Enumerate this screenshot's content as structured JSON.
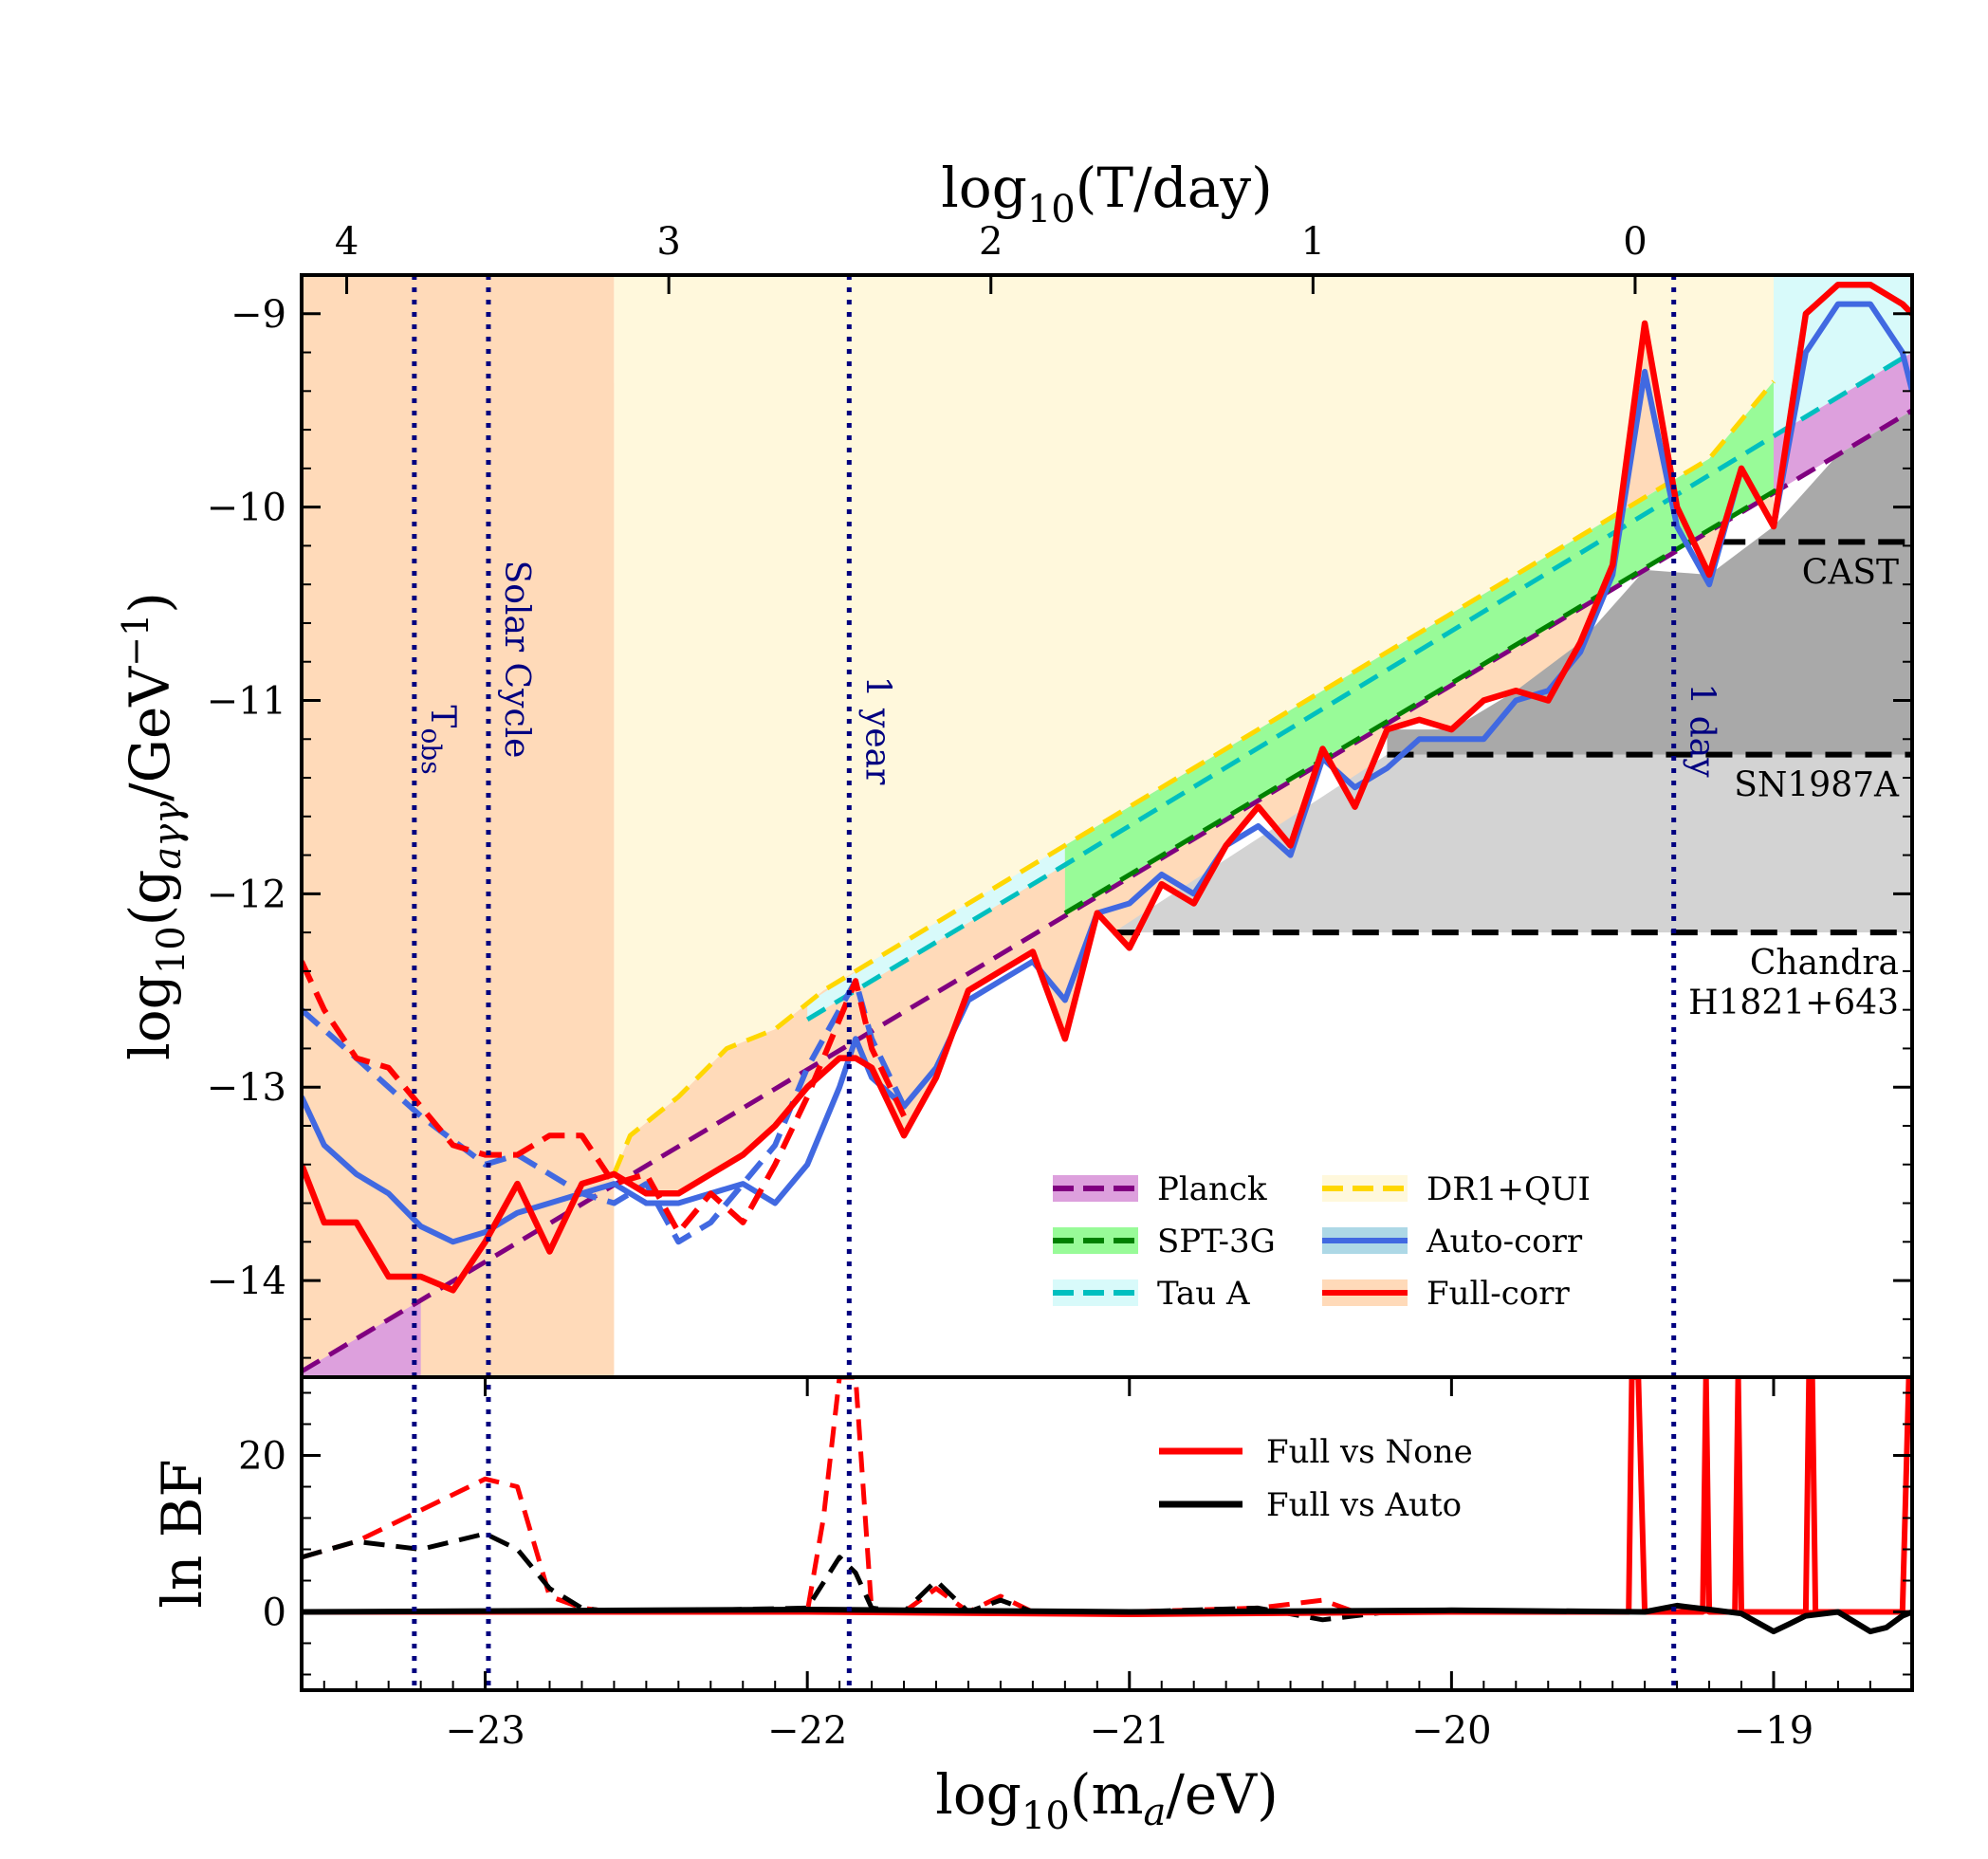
{
  "chart_data": {
    "type": "line",
    "top_axis": {
      "label_prefix": "log",
      "label_sub": "10",
      "label_main": "(T/day)",
      "ticks": [
        {
          "label": "4",
          "log_m": -23.43
        },
        {
          "label": "3",
          "log_m": -22.43
        },
        {
          "label": "2",
          "log_m": -21.43
        },
        {
          "label": "1",
          "log_m": -20.43
        },
        {
          "label": "0",
          "log_m": -19.43
        }
      ]
    },
    "upper_panel": {
      "ylabel_prefix": "log",
      "ylabel_sub": "10",
      "ylabel_main": "(g",
      "ylabel_sub2": "aγγ",
      "ylabel_rest": "/GeV",
      "ylabel_sup": "−1",
      "ylabel_close": ")",
      "xlim": [
        -23.57,
        -18.57
      ],
      "ylim": [
        -14.5,
        -8.8
      ],
      "yticks": [
        {
          "value": -9,
          "label": "−9"
        },
        {
          "value": -10,
          "label": "−10"
        },
        {
          "value": -11,
          "label": "−11"
        },
        {
          "value": -12,
          "label": "−12"
        },
        {
          "value": -13,
          "label": "−13"
        },
        {
          "value": -14,
          "label": "−14"
        }
      ],
      "vlines": [
        {
          "x": -23.22,
          "label": "T",
          "label_sub": "obs"
        },
        {
          "x": -22.99,
          "label": "Solar Cycle",
          "label_sub": ""
        },
        {
          "x": -21.87,
          "label": "1 year",
          "label_sub": ""
        },
        {
          "x": -19.31,
          "label": "1 day",
          "label_sub": ""
        }
      ],
      "bounds": [
        {
          "name": "CAST",
          "y": -10.18,
          "x_start": -19.17
        },
        {
          "name": "SN1987A",
          "y": -11.28,
          "x_start": -20.2
        },
        {
          "name": "Chandra H1821+643",
          "label_lines": [
            "Chandra",
            "H1821+643"
          ],
          "y": -12.2,
          "x_start": -21.05
        }
      ],
      "series": [
        {
          "name": "Planck",
          "color": "#800080",
          "fill": "#dda0dd",
          "x": [
            -23.57,
            -18.57
          ],
          "y": [
            -14.47,
            -9.5
          ]
        },
        {
          "name": "SPT-3G",
          "color": "#008000",
          "fill": "#98fb98",
          "x": [
            -21.2,
            -18.98
          ],
          "y": [
            -12.1,
            -9.9
          ]
        },
        {
          "name": "Tau A",
          "color": "#00bfbf",
          "fill": "#d8fafa",
          "x": [
            -22.0,
            -21.2,
            -18.57
          ],
          "y": [
            -12.65,
            -11.85,
            -9.2
          ]
        },
        {
          "name": "DR1+QUI",
          "color": "#ffd700",
          "fill": "#fff8dc",
          "x": [
            -22.6,
            -22.55,
            -22.4,
            -22.25,
            -22.1,
            -21.95,
            -21.8,
            -21.6,
            -21.4,
            -21.2,
            -21.0,
            -20.8,
            -20.6,
            -20.4,
            -20.2,
            -20.0,
            -19.8,
            -19.6,
            -19.4,
            -19.2,
            -19.0
          ],
          "y": [
            -13.45,
            -13.25,
            -13.05,
            -12.8,
            -12.7,
            -12.5,
            -12.35,
            -12.15,
            -11.95,
            -11.75,
            -11.55,
            -11.35,
            -11.15,
            -10.95,
            -10.75,
            -10.55,
            -10.35,
            -10.15,
            -9.95,
            -9.75,
            -9.35
          ]
        },
        {
          "name": "Auto-corr",
          "color": "#4169e1",
          "fill": "#add8e6",
          "x": [
            -23.57,
            -23.5,
            -23.4,
            -23.3,
            -23.2,
            -23.1,
            -23.0,
            -22.9,
            -22.8,
            -22.7,
            -22.6,
            -22.5,
            -22.4,
            -22.3,
            -22.2,
            -22.1,
            -22.0,
            -21.9,
            -21.85,
            -21.8,
            -21.7,
            -21.6,
            -21.5,
            -21.4,
            -21.3,
            -21.2,
            -21.1,
            -21.0,
            -20.9,
            -20.8,
            -20.7,
            -20.6,
            -20.5,
            -20.4,
            -20.3,
            -20.2,
            -20.1,
            -20.0,
            -19.9,
            -19.8,
            -19.7,
            -19.6,
            -19.5,
            -19.4,
            -19.3,
            -19.2,
            -19.1,
            -19.0,
            -18.9,
            -18.8,
            -18.7,
            -18.6,
            -18.57
          ],
          "y": [
            -13.05,
            -13.3,
            -13.45,
            -13.55,
            -13.72,
            -13.8,
            -13.75,
            -13.65,
            -13.6,
            -13.55,
            -13.5,
            -13.6,
            -13.6,
            -13.55,
            -13.5,
            -13.6,
            -13.4,
            -13.0,
            -12.75,
            -12.95,
            -13.1,
            -12.9,
            -12.55,
            -12.45,
            -12.35,
            -12.55,
            -12.1,
            -12.05,
            -11.9,
            -12.0,
            -11.75,
            -11.65,
            -11.8,
            -11.3,
            -11.45,
            -11.35,
            -11.2,
            -11.2,
            -11.2,
            -11.0,
            -10.95,
            -10.75,
            -10.35,
            -9.3,
            -10.1,
            -10.4,
            -9.8,
            -10.1,
            -9.2,
            -8.95,
            -8.95,
            -9.2,
            -9.4
          ]
        },
        {
          "name": "Full-corr",
          "color": "#ff0000",
          "fill": "#ffdab9",
          "x": [
            -23.57,
            -23.5,
            -23.4,
            -23.3,
            -23.2,
            -23.1,
            -23.0,
            -22.9,
            -22.8,
            -22.7,
            -22.6,
            -22.5,
            -22.4,
            -22.3,
            -22.2,
            -22.1,
            -22.0,
            -21.9,
            -21.85,
            -21.8,
            -21.7,
            -21.6,
            -21.5,
            -21.4,
            -21.3,
            -21.2,
            -21.1,
            -21.0,
            -20.9,
            -20.8,
            -20.7,
            -20.6,
            -20.5,
            -20.4,
            -20.3,
            -20.2,
            -20.1,
            -20.0,
            -19.9,
            -19.8,
            -19.7,
            -19.6,
            -19.5,
            -19.4,
            -19.3,
            -19.2,
            -19.1,
            -19.0,
            -18.9,
            -18.8,
            -18.7,
            -18.6,
            -18.57
          ],
          "y": [
            -13.4,
            -13.7,
            -13.7,
            -13.98,
            -13.98,
            -14.05,
            -13.8,
            -13.5,
            -13.85,
            -13.5,
            -13.45,
            -13.55,
            -13.55,
            -13.45,
            -13.35,
            -13.2,
            -13.0,
            -12.85,
            -12.85,
            -12.9,
            -13.25,
            -12.95,
            -12.5,
            -12.4,
            -12.3,
            -12.75,
            -12.1,
            -12.28,
            -11.95,
            -12.05,
            -11.75,
            -11.55,
            -11.75,
            -11.25,
            -11.55,
            -11.15,
            -11.1,
            -11.15,
            -11.0,
            -10.95,
            -11.0,
            -10.7,
            -10.3,
            -9.05,
            -10.0,
            -10.35,
            -9.8,
            -10.1,
            -9.0,
            -8.85,
            -8.85,
            -8.95,
            -9.0
          ]
        }
      ],
      "dashed_auto": {
        "x": [
          -23.57,
          -23.4,
          -23.2,
          -23.0,
          -22.9,
          -22.8,
          -22.7,
          -22.6,
          -22.5,
          -22.4,
          -22.3,
          -22.2,
          -22.1,
          -22.0,
          -21.9,
          -21.85,
          -21.8,
          -21.7
        ],
        "y": [
          -12.6,
          -12.85,
          -13.15,
          -13.4,
          -13.35,
          -13.45,
          -13.55,
          -13.6,
          -13.5,
          -13.8,
          -13.7,
          -13.5,
          -13.3,
          -12.9,
          -12.6,
          -12.45,
          -12.75,
          -13.1
        ]
      },
      "dashed_full": {
        "x": [
          -23.57,
          -23.5,
          -23.4,
          -23.3,
          -23.2,
          -23.1,
          -23.0,
          -22.9,
          -22.8,
          -22.7,
          -22.6,
          -22.5,
          -22.4,
          -22.3,
          -22.2,
          -22.1,
          -22.0,
          -21.9,
          -21.85,
          -21.8,
          -21.7
        ],
        "y": [
          -12.35,
          -12.6,
          -12.85,
          -12.9,
          -13.1,
          -13.3,
          -13.35,
          -13.35,
          -13.25,
          -13.25,
          -13.5,
          -13.45,
          -13.75,
          -13.55,
          -13.7,
          -13.4,
          -13.05,
          -12.65,
          -12.45,
          -12.8,
          -13.15
        ]
      }
    },
    "lower_panel": {
      "ylabel": "ln BF",
      "ylim": [
        -10,
        30
      ],
      "yticks": [
        {
          "value": 0,
          "label": "0"
        },
        {
          "value": 20,
          "label": "20"
        }
      ],
      "xticks": [
        {
          "value": -23,
          "label": "−23"
        },
        {
          "value": -22,
          "label": "−22"
        },
        {
          "value": -21,
          "label": "−21"
        },
        {
          "value": -20,
          "label": "−20"
        },
        {
          "value": -19,
          "label": "−19"
        }
      ],
      "series": [
        {
          "name": "Full vs None",
          "color": "#ff0000",
          "x": [
            -23.57,
            -22.0,
            -21.0,
            -20.0,
            -19.45,
            -19.44,
            -19.42,
            -19.4,
            -19.3,
            -19.22,
            -19.21,
            -19.2,
            -19.18,
            -19.12,
            -19.11,
            -19.1,
            -19.0,
            -18.9,
            -18.89,
            -18.88,
            -18.87,
            -18.8,
            -18.7,
            -18.6,
            -18.58,
            -18.57
          ],
          "y": [
            0,
            0,
            -0.3,
            0,
            0,
            30,
            30,
            0,
            0,
            0,
            30,
            0,
            0,
            0,
            30,
            0,
            0,
            0,
            30,
            30,
            0,
            0,
            0,
            0,
            30,
            30
          ]
        },
        {
          "name": "Full vs Auto",
          "color": "#000000",
          "x": [
            -23.57,
            -22.0,
            -21.0,
            -20.0,
            -19.4,
            -19.3,
            -19.2,
            -19.1,
            -19.0,
            -18.95,
            -18.9,
            -18.8,
            -18.7,
            -18.65,
            -18.6,
            -18.57
          ],
          "y": [
            0,
            0.3,
            0,
            0.2,
            0,
            0.8,
            0.3,
            -0.2,
            -2.5,
            -1.5,
            -0.5,
            0,
            -2.5,
            -2.0,
            -0.5,
            0
          ]
        }
      ],
      "dashed_none": {
        "x": [
          -23.57,
          -23.4,
          -23.2,
          -23.0,
          -22.9,
          -22.8,
          -22.7,
          -22.6,
          -22.0,
          -21.95,
          -21.9,
          -21.85,
          -21.8,
          -21.7,
          -21.6,
          -21.5,
          -21.4,
          -21.3,
          -21.0,
          -20.6,
          -20.4,
          -20.3,
          -20.0,
          -19.8
        ],
        "y": [
          7,
          9,
          13,
          17,
          16,
          2,
          0.5,
          0,
          0,
          12,
          30,
          30,
          0,
          0,
          3,
          0,
          2,
          0,
          0,
          0.5,
          1.5,
          0,
          0,
          0
        ]
      },
      "dashed_auto": {
        "x": [
          -23.57,
          -23.4,
          -23.2,
          -23.0,
          -22.9,
          -22.8,
          -22.7,
          -22.6,
          -22.0,
          -21.9,
          -21.85,
          -21.8,
          -21.7,
          -21.6,
          -21.5,
          -21.4,
          -21.3,
          -21.0,
          -20.6,
          -20.4,
          -20.2,
          -20.0,
          -19.8
        ],
        "y": [
          7,
          9,
          8,
          10,
          8,
          3,
          0.5,
          0,
          0.5,
          7,
          5,
          0.5,
          0,
          4,
          0,
          1.5,
          0,
          0,
          0.5,
          -1,
          0,
          0,
          0
        ]
      },
      "xlabel_prefix": "log",
      "xlabel_sub": "10",
      "xlabel_main": "(m",
      "xlabel_sub2": "a",
      "xlabel_rest": "/eV)"
    },
    "legend_upper": [
      "Planck",
      "SPT-3G",
      "Tau A",
      "DR1+QUI",
      "Auto-corr",
      "Full-corr"
    ],
    "legend_lower": [
      "Full vs None",
      "Full vs Auto"
    ]
  }
}
